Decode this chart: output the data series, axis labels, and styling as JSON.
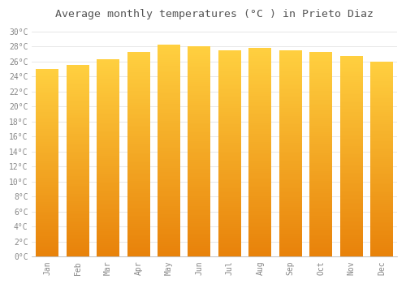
{
  "title": "Average monthly temperatures (°C ) in Prieto Diaz",
  "months": [
    "Jan",
    "Feb",
    "Mar",
    "Apr",
    "May",
    "Jun",
    "Jul",
    "Aug",
    "Sep",
    "Oct",
    "Nov",
    "Dec"
  ],
  "values": [
    25.0,
    25.5,
    26.3,
    27.3,
    28.2,
    28.0,
    27.5,
    27.8,
    27.5,
    27.2,
    26.7,
    26.0
  ],
  "bar_color_bottom": "#E8820A",
  "bar_color_top": "#FFD040",
  "background_color": "#FFFFFF",
  "grid_color": "#DDDDDD",
  "ylim": [
    0,
    31
  ],
  "yticks": [
    0,
    2,
    4,
    6,
    8,
    10,
    12,
    14,
    16,
    18,
    20,
    22,
    24,
    26,
    28,
    30
  ],
  "title_fontsize": 9.5,
  "tick_fontsize": 7,
  "title_color": "#555555",
  "tick_color": "#888888",
  "bar_width": 0.75,
  "n_gradient_steps": 100
}
